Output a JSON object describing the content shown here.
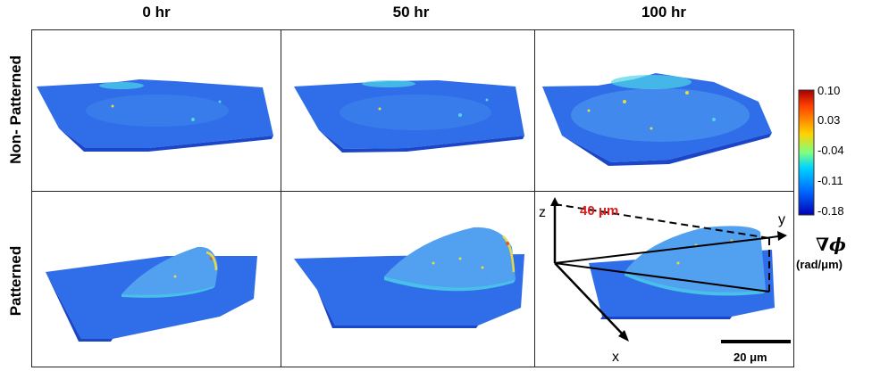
{
  "columns": [
    "0 hr",
    "50 hr",
    "100 hr"
  ],
  "rows": [
    "Non- Patterned",
    "Patterned"
  ],
  "colorbar": {
    "ticks": [
      "0.10",
      "0.03",
      "-0.04",
      "-0.11",
      "-0.18"
    ],
    "symbol": "∇ϕ",
    "unit": "(rad/μm)",
    "colors": [
      "#a30000",
      "#ff3c00",
      "#ffd200",
      "#7fff7f",
      "#00d5ff",
      "#0064ff",
      "#0000b4"
    ]
  },
  "axes_annotation": {
    "z_label": "z",
    "y_label": "y",
    "x_label": "x",
    "height_label": "40 μm",
    "height_label_color": "#e01b1b"
  },
  "scale_bar": {
    "label": "20 μm"
  },
  "surface_colors": {
    "base": "#2f6ee8",
    "dark": "#1c46c8",
    "light": "#52a0f0",
    "cyan": "#4fd4e8",
    "yellow": "#e8d84a"
  }
}
